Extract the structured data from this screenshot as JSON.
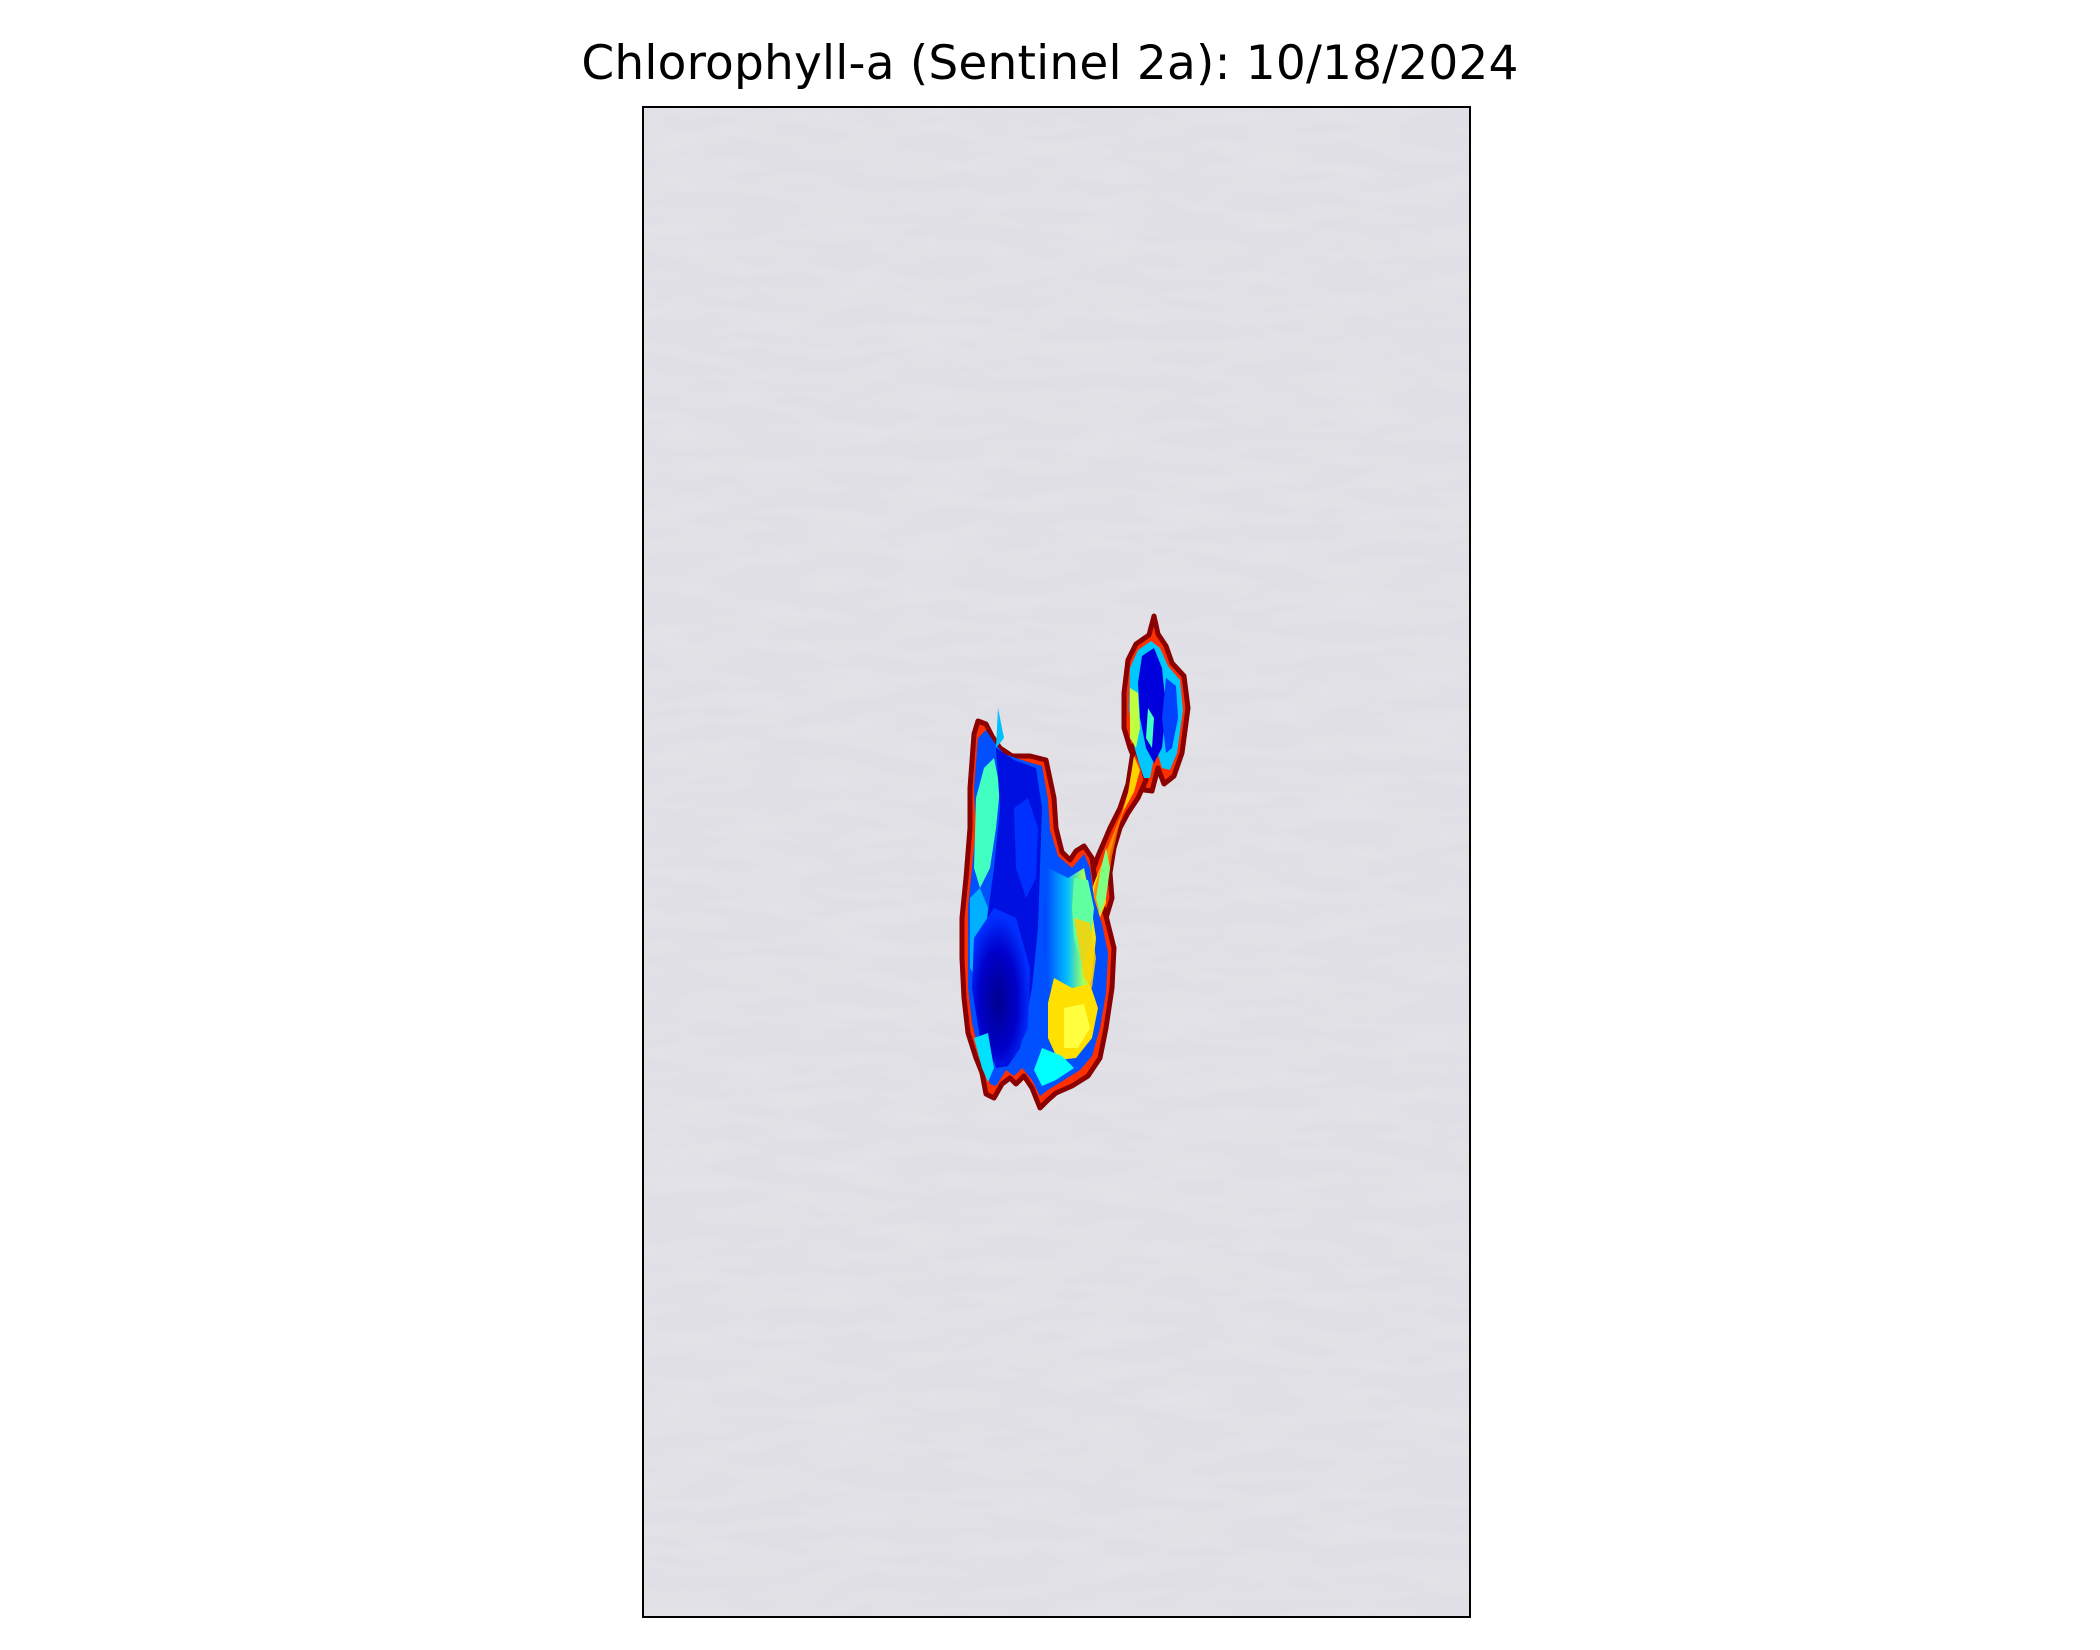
{
  "title": "Chlorophyll-a (Sentinel 2a): 10/18/2024",
  "map": {
    "basemap_color": "#dfdfe5",
    "colormap": "jet",
    "colormap_stops": [
      "#00007f",
      "#0000ff",
      "#0080ff",
      "#00ffff",
      "#80ff80",
      "#ffff00",
      "#ff8000",
      "#ff0000",
      "#7f0000"
    ],
    "outline_color": "#8b0000"
  }
}
